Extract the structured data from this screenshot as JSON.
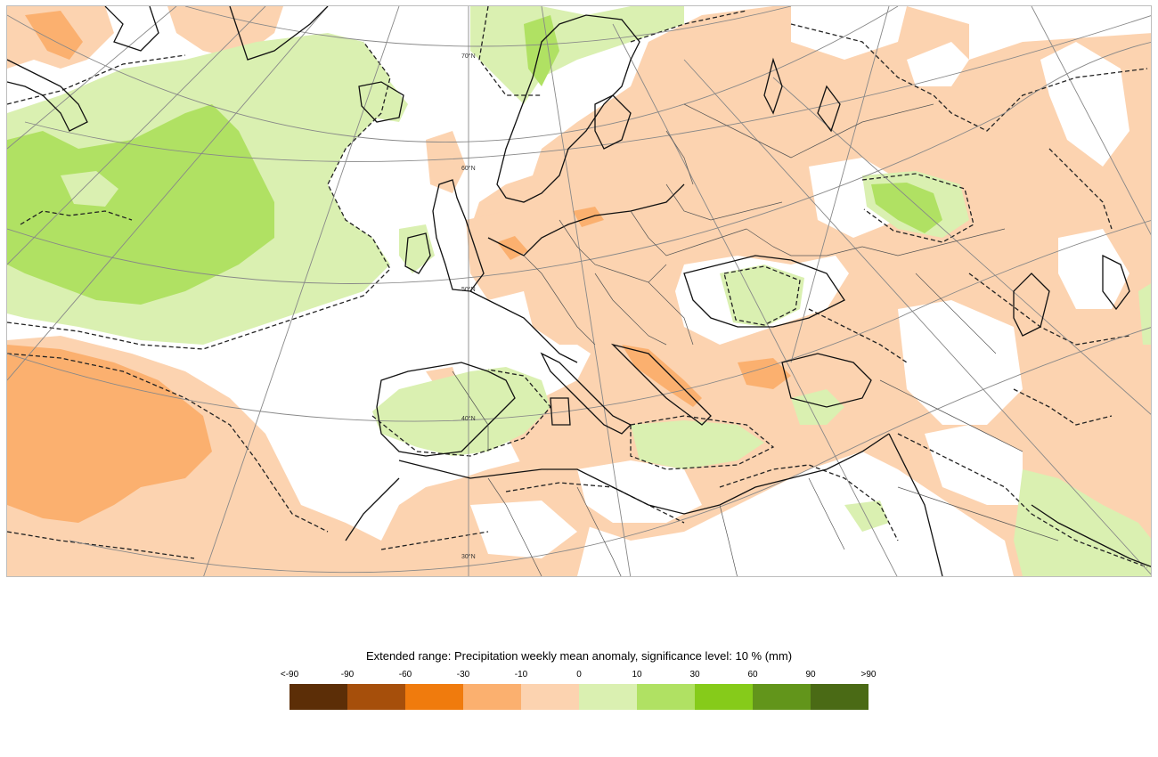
{
  "legend": {
    "title": "Extended range: Precipitation weekly mean anomaly, significance level: 10 % (mm)",
    "ticks": [
      "<-90",
      "-90",
      "-60",
      "-30",
      "-10",
      "0",
      "10",
      "30",
      "60",
      "90",
      ">90"
    ],
    "colors": [
      "#5c2e07",
      "#a64f0b",
      "#f07b0d",
      "#fbb06f",
      "#fcd3b0",
      "#daf0b1",
      "#b0e163",
      "#86cb1a",
      "#62951b",
      "#4a6a15"
    ]
  },
  "map": {
    "latitude_labels": [
      "70°N",
      "60°N",
      "50°N",
      "40°N",
      "30°N"
    ],
    "colors": {
      "dry_light": "#fcd3b0",
      "dry_mid": "#fbb06f",
      "wet_light": "#daf0b1",
      "wet_mid": "#b0e163",
      "coast": "#111111",
      "border": "#555555",
      "grid": "#888888"
    }
  }
}
